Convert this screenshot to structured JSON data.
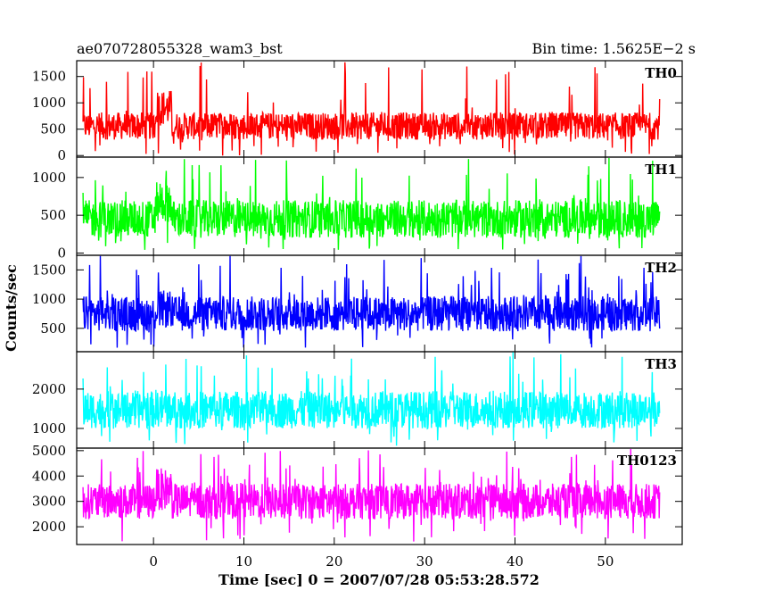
{
  "header": {
    "title": "ae070728055328_wam3_bst",
    "bin_time": "Bin time: 1.5625E−2 s"
  },
  "chart_data": {
    "type": "line",
    "title": "ae070728055328_wam3_bst",
    "xlabel": "Time [sec] 0 = 2007/07/28 05:53:28.572",
    "ylabel": "Counts/sec",
    "xlim": [
      -8.5,
      58.5
    ],
    "x_ticks": [
      0,
      10,
      20,
      30,
      40,
      50
    ],
    "x_range_data": [
      -7.8,
      56.0
    ],
    "bin_time_s": 0.015625,
    "grid": false,
    "series": [
      {
        "name": "TH0",
        "color": "#ff0000",
        "ylim": [
          -30,
          1800
        ],
        "y_ticks": [
          0,
          500,
          1000,
          1500
        ],
        "band_low": 300,
        "band_high": 820,
        "min": 0,
        "max": 1800,
        "burst_level": 1250
      },
      {
        "name": "TH1",
        "color": "#00ff00",
        "ylim": [
          -30,
          1270
        ],
        "y_ticks": [
          0,
          500,
          1000
        ],
        "band_low": 200,
        "band_high": 700,
        "min": 0,
        "max": 1270,
        "burst_level": 1000
      },
      {
        "name": "TH2",
        "color": "#0000ff",
        "ylim": [
          100,
          1750
        ],
        "y_ticks": [
          500,
          1000,
          1500
        ],
        "band_low": 450,
        "band_high": 1050,
        "min": 150,
        "max": 1750,
        "burst_level": 1150
      },
      {
        "name": "TH3",
        "color": "#00ffff",
        "ylim": [
          500,
          2950
        ],
        "y_ticks": [
          1000,
          2000
        ],
        "band_low": 1000,
        "band_high": 1950,
        "min": 550,
        "max": 2950,
        "burst_level": 2000
      },
      {
        "name": "TH0123",
        "color": "#ff00ff",
        "ylim": [
          1300,
          5100
        ],
        "y_ticks": [
          2000,
          3000,
          4000,
          5000
        ],
        "band_low": 2300,
        "band_high": 3700,
        "min": 1400,
        "max": 5100,
        "burst_level": 4300
      }
    ]
  }
}
